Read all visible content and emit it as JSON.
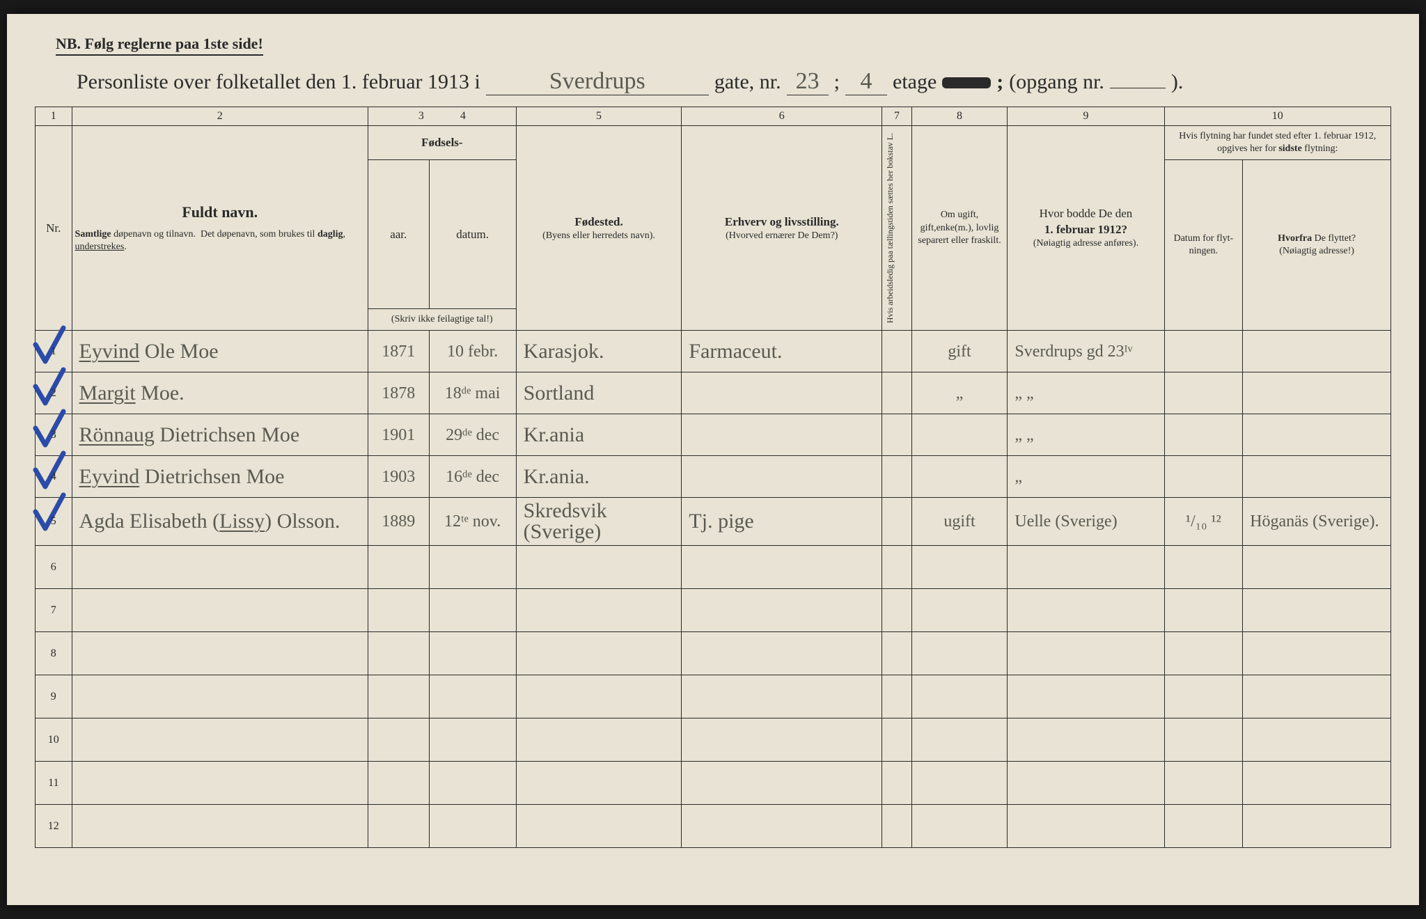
{
  "header": {
    "nb": "NB.   Følg reglerne paa 1ste side!",
    "title_prefix": "Personliste over folketallet den 1. februar 1913 i",
    "street": "Sverdrups",
    "gate_label": "gate, nr.",
    "gate_nr": "23",
    "semicolon": ";",
    "etage_nr": "4",
    "etage_label": "etage",
    "opgang_label": "(opgang nr.",
    "opgang_nr": "",
    "close_paren": ")."
  },
  "colnums": [
    "1",
    "2",
    "3",
    "4",
    "5",
    "6",
    "7",
    "8",
    "9",
    "10"
  ],
  "columns": {
    "nr": "Nr.",
    "name_title": "Fuldt navn.",
    "name_sub": "Samtlige døpenavn og tilnavn.  Det døpenavn, som brukes til daglig, understrekes.",
    "birth_group": "Fødsels-",
    "year": "aar.",
    "date": "datum.",
    "birth_note": "(Skriv ikke feilagtige tal!)",
    "birthplace_title": "Fødested.",
    "birthplace_sub": "(Byens eller herredets navn).",
    "occupation_title": "Erhverv og livsstilling.",
    "occupation_sub": "(Hvorved ernærer De Dem?)",
    "col7": "Hvis arbeidsledig paa tællingstiden sættes her bokstav L.",
    "col8": "Om ugift, gift,enke(m.), lovlig separert eller fraskilt.",
    "col9_title": "Hvor bodde De den 1. februar 1912?",
    "col9_sub": "(Nøiagtig adresse anføres).",
    "col10_top": "Hvis flytning har fundet sted efter 1. februar 1912, opgives her for sidste flytning:",
    "col10a": "Datum for flyt-ningen.",
    "col10b": "Hvorfra De flyttet? (Nøiagtig adresse!)"
  },
  "colors": {
    "paper": "#e8e3d4",
    "ink": "#2a2a2a",
    "pencil": "#5a5a52",
    "blue": "#2b4ba8"
  },
  "rows": [
    {
      "nr": "1",
      "check": true,
      "name": "Eyvind Ole Moe",
      "name_underlined": "Eyvind",
      "year": "1871",
      "date": "10 febr.",
      "birthplace": "Karasjok.",
      "occupation": "Farmaceut.",
      "col7": "",
      "col8": "gift",
      "col9": "Sverdrups gd 23ᴵᵛ",
      "col10a": "",
      "col10b": ""
    },
    {
      "nr": "2",
      "check": true,
      "name": "Margit Moe.",
      "name_underlined": "Margit",
      "year": "1878",
      "date": "18ᵈᵉ mai",
      "birthplace": "Sortland",
      "occupation": "",
      "col7": "",
      "col8": "„",
      "col9": "„   „",
      "col10a": "",
      "col10b": ""
    },
    {
      "nr": "3",
      "check": true,
      "name": "Rönnaug Dietrichsen Moe",
      "name_underlined": "Rönnaug",
      "year": "1901",
      "date": "29ᵈᵉ dec",
      "birthplace": "Kr.ania",
      "occupation": "",
      "col7": "",
      "col8": "",
      "col9": "„   „",
      "col10a": "",
      "col10b": ""
    },
    {
      "nr": "4",
      "check": true,
      "name": "Eyvind Dietrichsen Moe",
      "name_underlined": "Eyvind",
      "year": "1903",
      "date": "16ᵈᵉ dec",
      "birthplace": "Kr.ania.",
      "occupation": "",
      "col7": "",
      "col8": "",
      "col9": "„",
      "col10a": "",
      "col10b": ""
    },
    {
      "nr": "5",
      "check": true,
      "name": "Agda Elisabeth (Lissy) Olsson.",
      "name_underlined": "Lissy",
      "year": "1889",
      "date": "12ᵗᵉ nov.",
      "birthplace": "Skredsvik (Sverige)",
      "occupation": "Tj. pige",
      "col7": "",
      "col8": "ugift",
      "col9": "Uelle (Sverige)",
      "col10a": "¹/₁₀ ¹²",
      "col10b": "Höganäs (Sverige)."
    }
  ],
  "empty_rows": [
    "6",
    "7",
    "8",
    "9",
    "10",
    "11",
    "12"
  ]
}
